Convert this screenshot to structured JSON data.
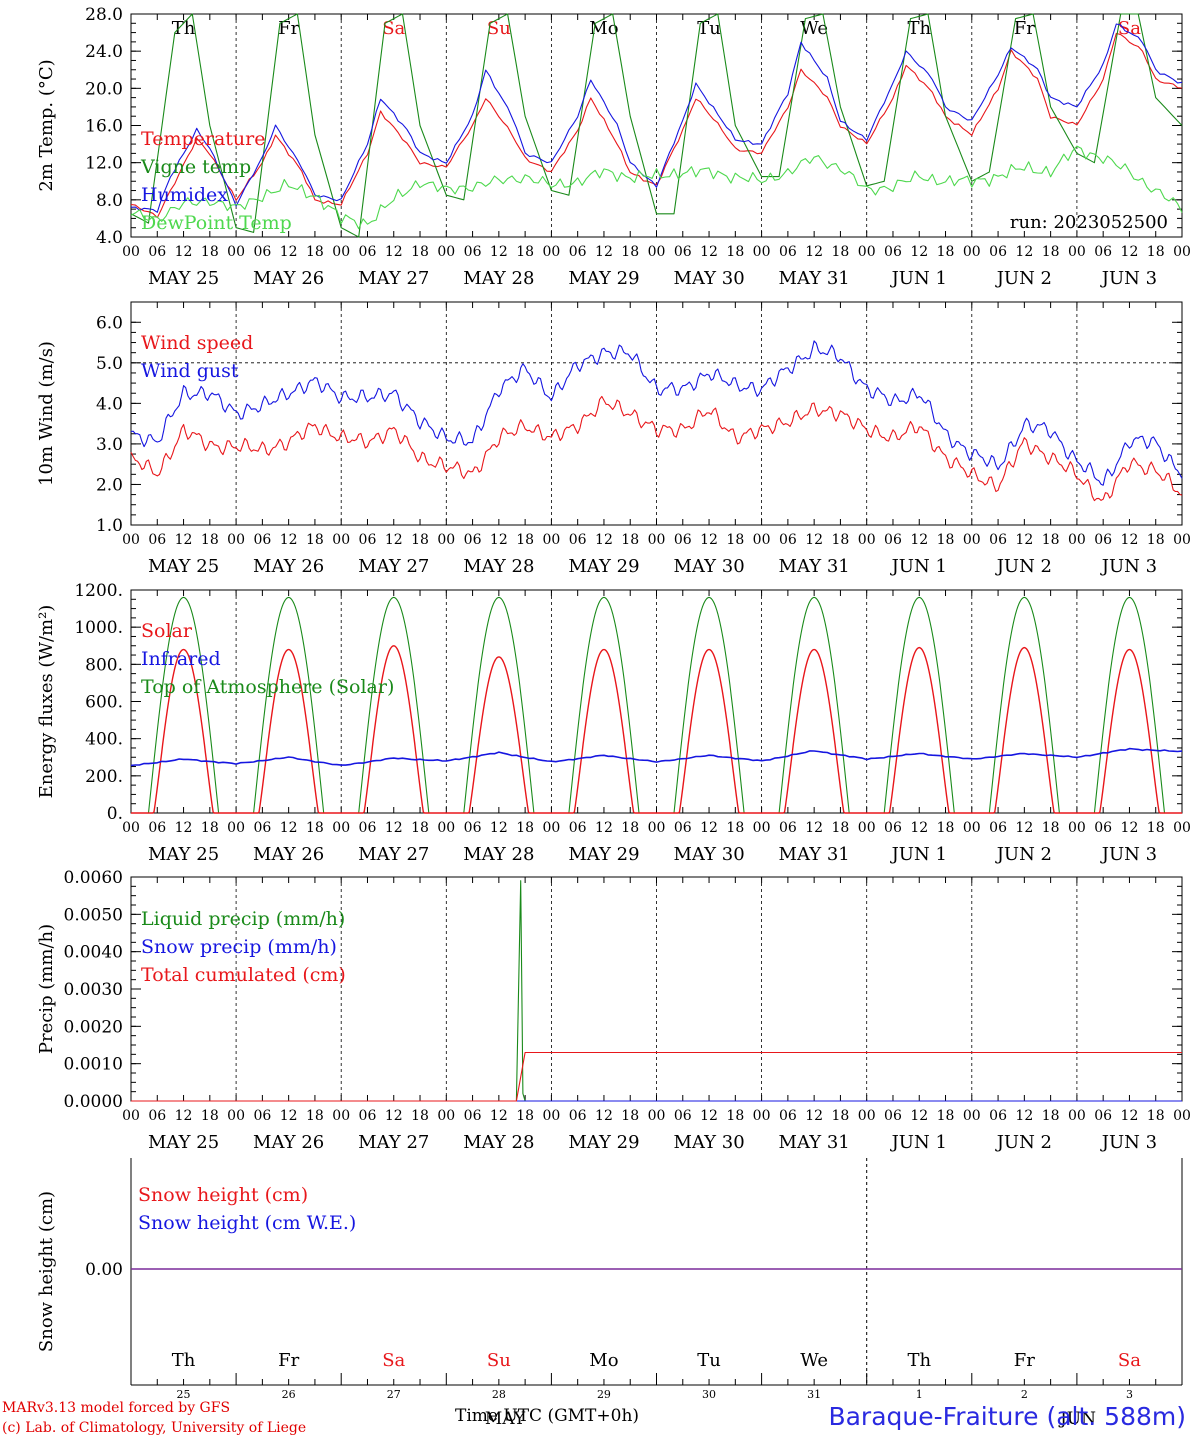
{
  "run_label": "run: 2023052500",
  "credits": {
    "line1": "MARv3.13 model forced by GFS",
    "line2": "(c) Lab. of Climatology, University of Liege"
  },
  "station": "Baraque-Fraiture (alt. 588m)",
  "time_axis_label": "Time UTC (GMT+0h)",
  "month_overlay": "MAY",
  "month_overlay_2": "JUN",
  "colors": {
    "red": "#e8171b",
    "green": "#1a8a1a",
    "blue": "#1616e0",
    "lightgreen": "#4ed84e",
    "purple": "#7a2a9a",
    "weekend": "#e8171b"
  },
  "days": {
    "hour_ticks": [
      "00",
      "06",
      "12",
      "18"
    ],
    "dates": [
      "MAY 25",
      "MAY 26",
      "MAY 27",
      "MAY 28",
      "MAY 29",
      "MAY 30",
      "MAY 31",
      "JUN  1",
      "JUN  2",
      "JUN  3"
    ],
    "weekdays": [
      "Th",
      "Fr",
      "Sa",
      "Su",
      "Mo",
      "Tu",
      "We",
      "Th",
      "Fr",
      "Sa"
    ],
    "weekend": [
      false,
      false,
      true,
      true,
      false,
      false,
      false,
      false,
      false,
      true
    ],
    "day_numbers": [
      "25",
      "26",
      "27",
      "28",
      "29",
      "30",
      "31",
      "1",
      "2",
      "3"
    ]
  },
  "chart_data": [
    {
      "type": "line",
      "id": "temperature",
      "ylabel": "2m Temp. (°C)",
      "ylim": [
        4,
        28
      ],
      "yticks": [
        "4.0",
        "8.0",
        "12.0",
        "16.0",
        "20.0",
        "24.0",
        "28.0"
      ],
      "x_unit": "hours since 2023-05-25 00 UTC",
      "series": [
        {
          "name": "Temperature",
          "color": "red",
          "x": [
            0,
            6,
            9,
            15,
            18,
            24,
            30,
            33,
            39,
            42,
            48,
            54,
            57,
            63,
            66,
            72,
            78,
            81,
            87,
            90,
            96,
            102,
            105,
            111,
            114,
            120,
            126,
            129,
            135,
            138,
            144,
            150,
            153,
            159,
            162,
            168,
            174,
            177,
            183,
            186,
            192,
            198,
            201,
            207,
            210,
            216,
            222,
            225,
            231,
            234,
            240
          ],
          "values": [
            7.5,
            6.2,
            9.0,
            14.5,
            13.0,
            8.0,
            12.0,
            15.0,
            11.0,
            8.0,
            7.5,
            13.0,
            17.5,
            14.0,
            12.0,
            11.5,
            16.0,
            19.0,
            15.0,
            12.5,
            11.0,
            15.5,
            19.0,
            14.0,
            11.0,
            9.5,
            15.5,
            19.0,
            15.5,
            13.5,
            13.0,
            18.0,
            22.0,
            19.0,
            16.0,
            14.0,
            19.0,
            22.5,
            19.5,
            17.0,
            15.0,
            20.0,
            24.0,
            21.0,
            17.0,
            16.0,
            21.0,
            26.0,
            24.0,
            21.0,
            20.0
          ]
        },
        {
          "name": "Vigne temp",
          "color": "green",
          "x": [
            0,
            4,
            10,
            14,
            18,
            24,
            28,
            34,
            38,
            42,
            48,
            52,
            58,
            62,
            66,
            72,
            76,
            82,
            86,
            90,
            96,
            100,
            106,
            110,
            114,
            120,
            124,
            130,
            134,
            138,
            144,
            148,
            154,
            158,
            162,
            168,
            172,
            178,
            182,
            186,
            192,
            196,
            202,
            206,
            210,
            216,
            220,
            226,
            230,
            234,
            240
          ],
          "values": [
            6.5,
            5.5,
            26.0,
            28.0,
            16.0,
            5.0,
            4.5,
            27.0,
            28.0,
            15.0,
            5.0,
            4.0,
            27.0,
            28.0,
            16.0,
            8.5,
            8.0,
            27.0,
            28.0,
            17.0,
            9.0,
            8.5,
            27.0,
            28.0,
            17.0,
            6.5,
            6.5,
            27.0,
            28.0,
            16.0,
            10.5,
            10.5,
            27.5,
            28.0,
            18.0,
            9.5,
            10.0,
            27.5,
            28.0,
            17.0,
            10.0,
            11.0,
            27.5,
            28.0,
            18.0,
            13.0,
            12.0,
            28.0,
            28.0,
            19.0,
            16.0
          ]
        },
        {
          "name": "Humidex",
          "color": "blue",
          "x": [
            0,
            6,
            9,
            15,
            18,
            24,
            30,
            33,
            39,
            42,
            48,
            54,
            57,
            63,
            66,
            72,
            78,
            81,
            87,
            90,
            96,
            102,
            105,
            111,
            114,
            120,
            126,
            129,
            135,
            138,
            144,
            150,
            153,
            159,
            162,
            168,
            174,
            177,
            183,
            186,
            192,
            198,
            201,
            207,
            210,
            216,
            222,
            225,
            231,
            234,
            240
          ],
          "values": [
            7.2,
            6.8,
            10.5,
            15.5,
            13.5,
            7.5,
            12.5,
            16.0,
            11.5,
            8.5,
            8.0,
            14.0,
            19.0,
            15.5,
            13.0,
            12.0,
            17.0,
            22.0,
            17.0,
            13.0,
            12.0,
            17.0,
            21.0,
            16.0,
            12.0,
            9.5,
            16.5,
            20.5,
            16.5,
            14.5,
            14.0,
            19.5,
            25.0,
            21.0,
            16.5,
            14.5,
            20.5,
            24.0,
            21.0,
            18.0,
            16.5,
            21.5,
            24.5,
            22.0,
            19.0,
            18.0,
            22.5,
            27.0,
            25.0,
            22.0,
            20.5
          ]
        },
        {
          "name": "DewPoint Temp",
          "color": "lightgreen",
          "x": [
            0,
            6,
            12,
            18,
            24,
            30,
            36,
            42,
            48,
            54,
            60,
            66,
            72,
            78,
            84,
            90,
            96,
            102,
            108,
            114,
            120,
            126,
            132,
            138,
            144,
            150,
            156,
            162,
            168,
            174,
            180,
            186,
            192,
            198,
            204,
            210,
            216,
            222,
            228,
            234,
            240
          ],
          "values": [
            6.5,
            6.0,
            7.5,
            8.0,
            7.0,
            8.5,
            9.5,
            8.5,
            6.0,
            5.5,
            8.0,
            10.0,
            9.0,
            9.5,
            10.0,
            10.5,
            9.5,
            10.0,
            11.0,
            10.5,
            10.5,
            11.0,
            11.0,
            10.5,
            10.0,
            11.0,
            12.5,
            11.5,
            9.0,
            9.5,
            10.5,
            10.0,
            10.0,
            10.5,
            11.5,
            11.0,
            13.5,
            12.5,
            11.0,
            9.0,
            7.0
          ]
        }
      ]
    },
    {
      "type": "line",
      "id": "wind",
      "ylabel": "10m Wind (m/s)",
      "ylim": [
        1,
        6.5
      ],
      "yticks": [
        "1.0",
        "2.0",
        "3.0",
        "4.0",
        "5.0",
        "6.0"
      ],
      "hline": 5.0,
      "x_unit": "hours since 2023-05-25 00 UTC",
      "series": [
        {
          "name": "Wind speed",
          "color": "red",
          "x": [
            0,
            6,
            12,
            18,
            24,
            30,
            36,
            42,
            48,
            54,
            60,
            66,
            72,
            78,
            84,
            90,
            96,
            102,
            108,
            114,
            120,
            126,
            132,
            138,
            144,
            150,
            156,
            162,
            168,
            174,
            180,
            186,
            192,
            198,
            204,
            210,
            216,
            222,
            228,
            234,
            240
          ],
          "values": [
            2.6,
            2.3,
            3.3,
            3.0,
            2.9,
            2.9,
            3.0,
            3.5,
            3.1,
            3.1,
            3.3,
            2.7,
            2.4,
            2.3,
            3.1,
            3.5,
            3.1,
            3.5,
            4.0,
            3.8,
            3.3,
            3.4,
            3.8,
            3.2,
            3.3,
            3.6,
            3.8,
            3.8,
            3.3,
            3.2,
            3.4,
            2.7,
            2.2,
            2.0,
            3.0,
            2.7,
            2.2,
            1.6,
            2.5,
            2.4,
            1.7
          ]
        },
        {
          "name": "Wind gust",
          "color": "blue",
          "x": [
            0,
            6,
            12,
            18,
            24,
            30,
            36,
            42,
            48,
            54,
            60,
            66,
            72,
            78,
            84,
            90,
            96,
            102,
            108,
            114,
            120,
            126,
            132,
            138,
            144,
            150,
            156,
            162,
            168,
            174,
            180,
            186,
            192,
            198,
            204,
            210,
            216,
            222,
            228,
            234,
            240
          ],
          "values": [
            3.3,
            3.0,
            4.3,
            4.2,
            3.8,
            3.9,
            4.3,
            4.5,
            4.2,
            4.1,
            4.3,
            3.5,
            3.2,
            3.0,
            4.4,
            4.8,
            4.2,
            4.9,
            5.3,
            5.2,
            4.4,
            4.3,
            4.8,
            4.4,
            4.4,
            4.8,
            5.4,
            5.1,
            4.4,
            4.0,
            4.3,
            3.2,
            2.8,
            2.4,
            3.5,
            3.3,
            2.6,
            2.0,
            3.1,
            3.0,
            2.3
          ]
        }
      ]
    },
    {
      "type": "line",
      "id": "energy",
      "ylabel": "Energy fluxes (W/m²)",
      "ylim": [
        0,
        1200
      ],
      "yticks": [
        "0.",
        "200.",
        "400.",
        "600.",
        "800.",
        "1000.",
        "1200."
      ],
      "x_unit": "hours since 2023-05-25 00 UTC",
      "diurnal": {
        "sunrise": 4,
        "sunset": 20,
        "solar_peaks": [
          880,
          880,
          900,
          840,
          880,
          880,
          880,
          890,
          890,
          880
        ],
        "toa_peak": 1160
      },
      "series": [
        {
          "name": "Solar",
          "color": "red"
        },
        {
          "name": "Infrared",
          "color": "blue",
          "x": [
            0,
            12,
            24,
            36,
            48,
            60,
            72,
            84,
            96,
            108,
            120,
            132,
            144,
            156,
            168,
            180,
            192,
            204,
            216,
            228,
            240
          ],
          "values": [
            255,
            290,
            265,
            300,
            255,
            295,
            280,
            325,
            275,
            310,
            275,
            310,
            280,
            335,
            290,
            320,
            290,
            320,
            300,
            345,
            330
          ]
        },
        {
          "name": "Top of Atmosphere (Solar)",
          "color": "green"
        }
      ]
    },
    {
      "type": "line",
      "id": "precip",
      "ylabel": "Precip (mm/h)",
      "ylim": [
        0,
        0.006
      ],
      "yticks": [
        "0.0000",
        "0.0010",
        "0.0020",
        "0.0030",
        "0.0040",
        "0.0050",
        "0.0060"
      ],
      "x_unit": "hours since 2023-05-25 00 UTC",
      "series": [
        {
          "name": "Liquid precip (mm/h)",
          "color": "green",
          "x": [
            0,
            88,
            89,
            89.5,
            90,
            240
          ],
          "values": [
            0,
            0,
            0.0059,
            0.0002,
            0,
            0
          ]
        },
        {
          "name": "Snow precip (mm/h)",
          "color": "blue",
          "x": [
            0,
            240
          ],
          "values": [
            0,
            0
          ]
        },
        {
          "name": "Total cumulated (cm)",
          "color": "red",
          "x": [
            0,
            88,
            90,
            240
          ],
          "values": [
            0,
            0,
            0.0013,
            0.0013
          ]
        }
      ]
    },
    {
      "type": "line",
      "id": "snow",
      "ylabel": "Snow height (cm)",
      "ytick": "0.00",
      "series": [
        {
          "name": "Snow height (cm)",
          "color": "red",
          "values": [
            0,
            0
          ]
        },
        {
          "name": "Snow height (cm W.E.)",
          "color": "blue",
          "values": [
            0,
            0
          ]
        }
      ]
    }
  ]
}
